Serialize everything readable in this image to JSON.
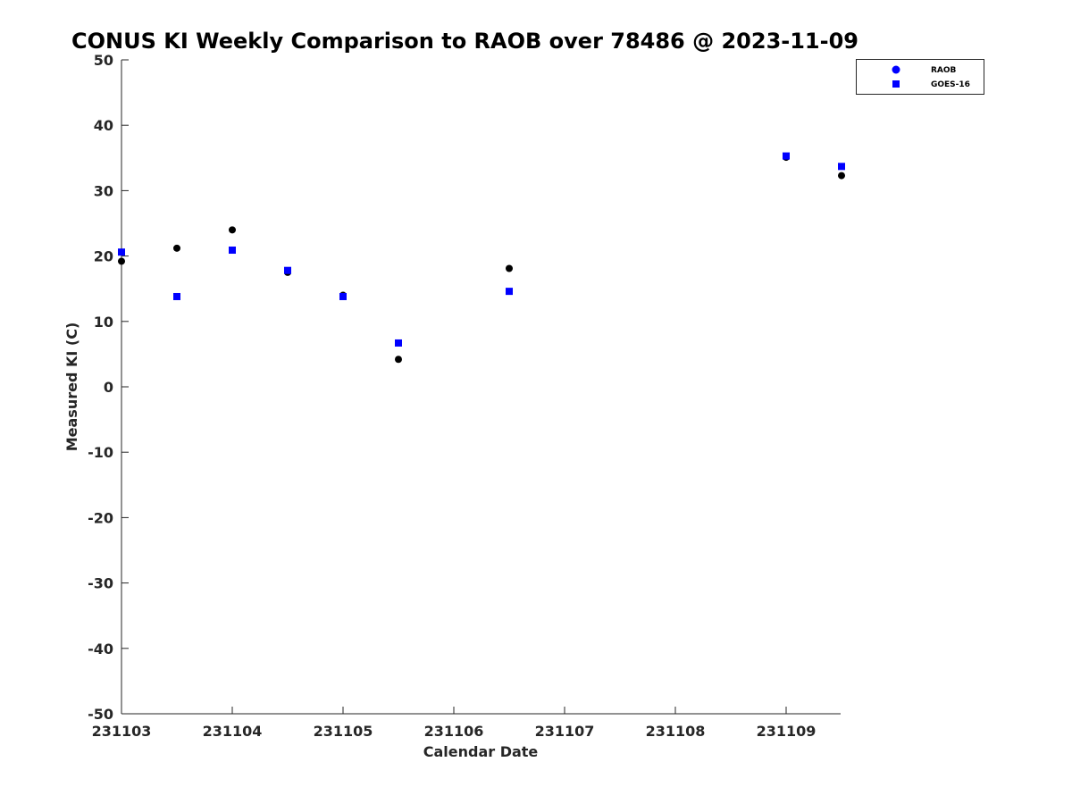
{
  "chart_data": {
    "type": "scatter",
    "title": "CONUS KI Weekly Comparison to RAOB over 78486 @ 2023-11-09",
    "xlabel": "Calendar Date",
    "ylabel": "Measured KI (C)",
    "x_ticks": [
      {
        "value": 0,
        "label": "231103"
      },
      {
        "value": 1,
        "label": "231104"
      },
      {
        "value": 2,
        "label": "231105"
      },
      {
        "value": 3,
        "label": "231106"
      },
      {
        "value": 4,
        "label": "231107"
      },
      {
        "value": 5,
        "label": "231108"
      },
      {
        "value": 6,
        "label": "231109"
      }
    ],
    "y_ticks": [
      50,
      40,
      30,
      20,
      10,
      0,
      -10,
      -20,
      -30,
      -40,
      -50
    ],
    "xlim": [
      0,
      6.5
    ],
    "ylim": [
      -50,
      50
    ],
    "grid": false,
    "legend_position": "top-right",
    "series": [
      {
        "name": "RAOB",
        "marker": "circle",
        "color": "#000000",
        "legend_color": "#0000ff",
        "points": [
          {
            "x": 0.0,
            "y": 19.2
          },
          {
            "x": 0.5,
            "y": 21.2
          },
          {
            "x": 1.0,
            "y": 24.0
          },
          {
            "x": 1.5,
            "y": 17.5
          },
          {
            "x": 2.0,
            "y": 14.0
          },
          {
            "x": 2.5,
            "y": 4.2
          },
          {
            "x": 3.5,
            "y": 18.1
          },
          {
            "x": 6.0,
            "y": 35.1
          },
          {
            "x": 6.5,
            "y": 32.3
          }
        ]
      },
      {
        "name": "GOES-16",
        "marker": "square",
        "color": "#0000ff",
        "legend_color": "#0000ff",
        "points": [
          {
            "x": 0.0,
            "y": 20.6
          },
          {
            "x": 0.5,
            "y": 13.8
          },
          {
            "x": 1.0,
            "y": 20.9
          },
          {
            "x": 1.5,
            "y": 17.8
          },
          {
            "x": 2.0,
            "y": 13.8
          },
          {
            "x": 2.5,
            "y": 6.7
          },
          {
            "x": 3.5,
            "y": 14.6
          },
          {
            "x": 6.0,
            "y": 35.3
          },
          {
            "x": 6.5,
            "y": 33.7
          }
        ]
      }
    ]
  }
}
